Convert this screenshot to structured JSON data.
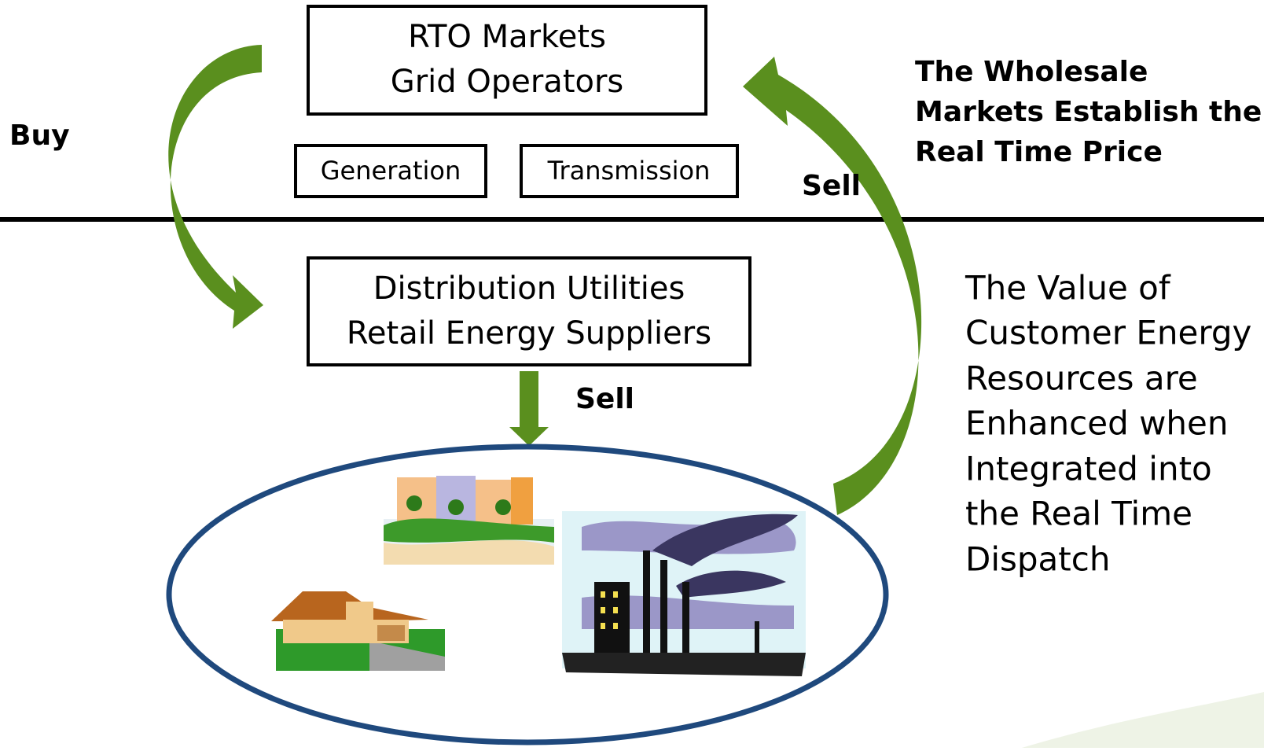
{
  "top_box": {
    "lines": [
      "RTO Markets",
      "Grid Operators"
    ]
  },
  "generation": "Generation",
  "transmission": "Transmission",
  "lower_box": {
    "lines": [
      "Distribution Utilities",
      "Retail Energy Suppliers"
    ]
  },
  "labels": {
    "buy": "Buy",
    "sell_up": "Sell",
    "sell_down": "Sell"
  },
  "wholesale_note": {
    "lines": [
      "The Wholesale",
      "Markets Establish the",
      "Real Time Price"
    ]
  },
  "value_note": {
    "lines": [
      "The Value of",
      "Customer Energy",
      "Resources are",
      "Enhanced when",
      "Integrated into",
      "the Real Time",
      "Dispatch"
    ]
  }
}
